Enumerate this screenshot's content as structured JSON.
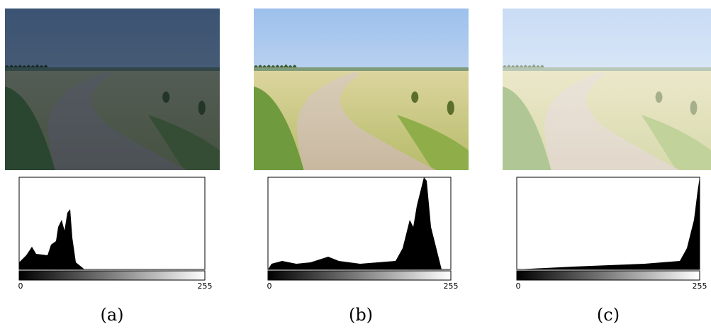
{
  "panels": [
    {
      "caption": "(a)",
      "axis_min": "0",
      "axis_max": "255"
    },
    {
      "caption": "(b)",
      "axis_min": "0",
      "axis_max": "255"
    },
    {
      "caption": "(c)",
      "axis_min": "0",
      "axis_max": "255"
    }
  ]
}
